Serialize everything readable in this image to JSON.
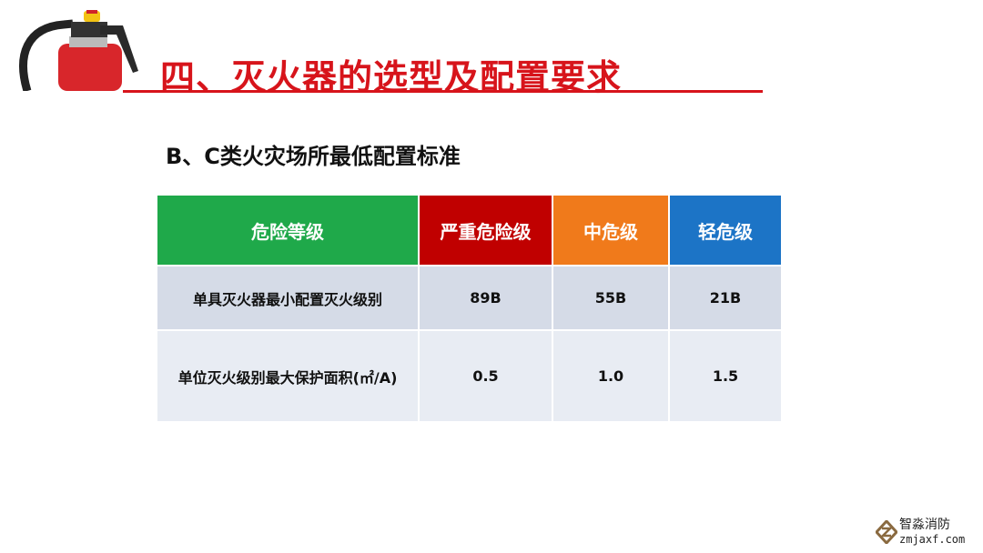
{
  "title": "四、灭火器的选型及配置要求",
  "subtitle": "B、C类火灾场所最低配置标准",
  "colors": {
    "accent": "#d7141b",
    "green": "#1fa94a",
    "red": "#c00000",
    "orange": "#f07a1b",
    "blue": "#1c74c6"
  },
  "table": {
    "headers": [
      "危险等级",
      "严重危险级",
      "中危级",
      "轻危级"
    ],
    "rows": [
      [
        "单具灭火器最小配置灭火级别",
        "89B",
        "55B",
        "21B"
      ],
      [
        "单位灭火级别最大保护面积(㎡/A)",
        "0.5",
        "1.0",
        "1.5"
      ]
    ]
  },
  "logo": {
    "name": "智淼消防",
    "url": "zmjaxf.com"
  }
}
